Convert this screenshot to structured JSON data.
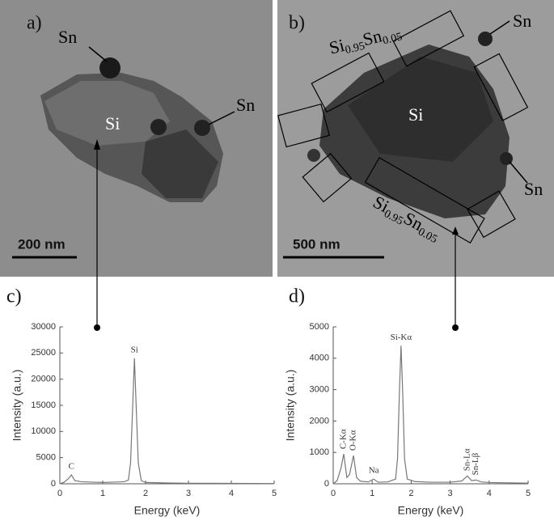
{
  "images": [
    {
      "label": "a)",
      "annotations": [
        "Sn",
        "Sn",
        "Si"
      ],
      "scale_bar": "200 nm"
    },
    {
      "label": "b)",
      "annotations": [
        "Sn",
        "Sn",
        "Si"
      ],
      "composition": [
        "Si",
        "0.95",
        "Sn",
        "0.05"
      ],
      "scale_bar": "500 nm"
    }
  ],
  "chart_data": [
    {
      "type": "line",
      "panel_label": "c)",
      "xlabel": "Energy (keV)",
      "ylabel": "Intensity (a.u.)",
      "color": "#777777",
      "x": [
        0,
        0.1,
        0.2,
        0.27,
        0.35,
        0.5,
        0.8,
        1.0,
        1.2,
        1.5,
        1.6,
        1.65,
        1.7,
        1.74,
        1.78,
        1.83,
        1.9,
        2.0,
        2.5,
        3.0,
        3.5,
        4.0,
        4.5,
        5.0
      ],
      "values": [
        0,
        300,
        1000,
        1700,
        600,
        400,
        300,
        250,
        300,
        400,
        700,
        4000,
        15000,
        24000,
        15000,
        4000,
        600,
        250,
        150,
        100,
        100,
        80,
        60,
        50
      ],
      "xlim": [
        0,
        5
      ],
      "xticks": [
        0,
        1,
        2,
        3,
        4,
        5
      ],
      "ylim": [
        0,
        30000
      ],
      "yticks": [
        0,
        5000,
        10000,
        15000,
        20000,
        25000,
        30000
      ],
      "annotations": [
        "C",
        "Si"
      ]
    },
    {
      "type": "line",
      "panel_label": "d)",
      "xlabel": "Energy (keV)",
      "ylabel": "Intensity (a.u.)",
      "color": "#777777",
      "x": [
        0,
        0.1,
        0.2,
        0.27,
        0.35,
        0.42,
        0.52,
        0.6,
        0.7,
        0.9,
        1.04,
        1.15,
        1.4,
        1.6,
        1.65,
        1.7,
        1.74,
        1.78,
        1.83,
        1.9,
        2.1,
        2.5,
        3.0,
        3.3,
        3.44,
        3.55,
        3.66,
        3.8,
        4.0,
        4.5,
        5.0
      ],
      "values": [
        0,
        100,
        500,
        950,
        200,
        300,
        900,
        200,
        80,
        60,
        150,
        50,
        60,
        150,
        800,
        3000,
        4400,
        3000,
        800,
        150,
        70,
        50,
        50,
        90,
        250,
        100,
        120,
        60,
        40,
        30,
        20
      ],
      "xlim": [
        0,
        5
      ],
      "xticks": [
        0,
        1,
        2,
        3,
        4,
        5
      ],
      "ylim": [
        0,
        5000
      ],
      "yticks": [
        0,
        1000,
        2000,
        3000,
        4000,
        5000
      ],
      "annotations": [
        "C-Kα",
        "O-Kα",
        "Na",
        "Si-Kα",
        "Sn-Lα",
        "Sn-Lβ"
      ]
    }
  ]
}
